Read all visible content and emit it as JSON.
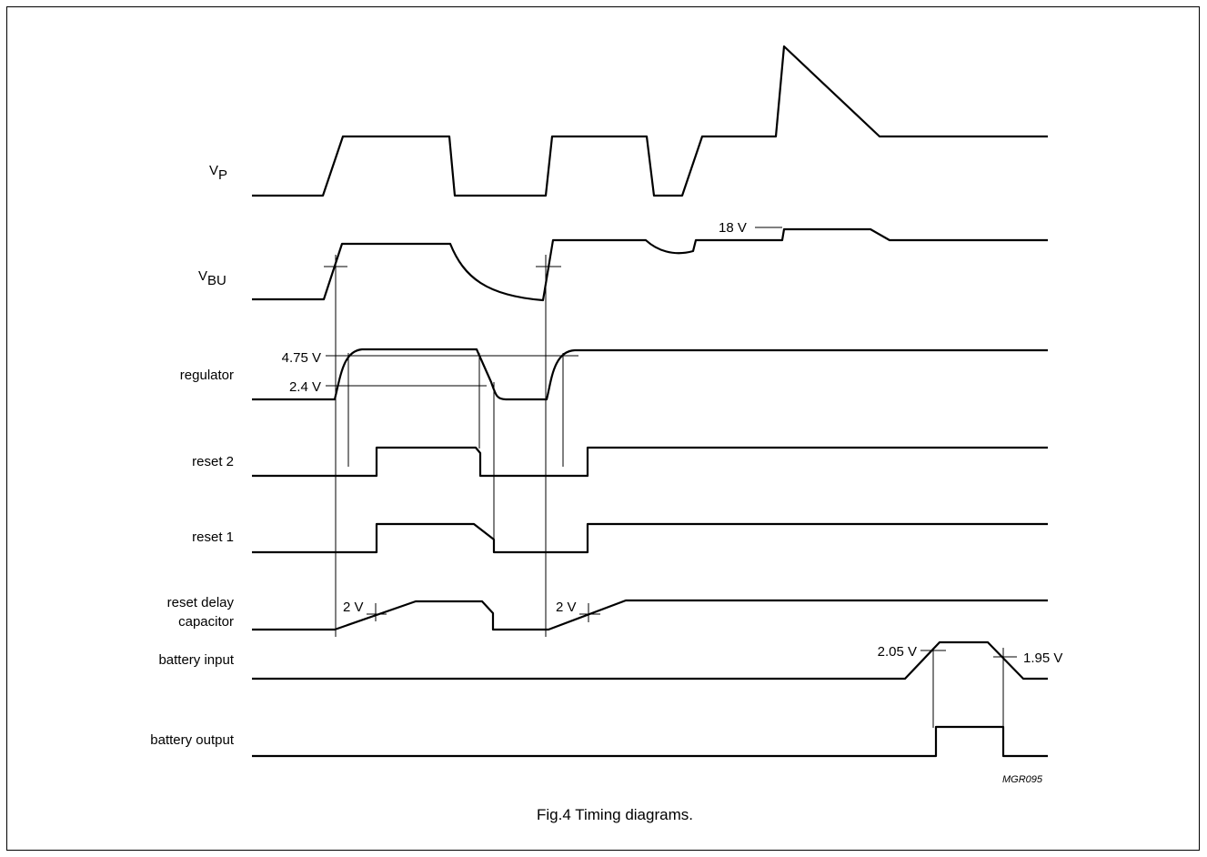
{
  "signals": {
    "vp": {
      "label": "V",
      "sub": "P"
    },
    "vbu": {
      "label": "V",
      "sub": "BU"
    },
    "regulator": "regulator",
    "reset2": "reset 2",
    "reset1": "reset 1",
    "reset_delay_line1": "reset delay",
    "reset_delay_line2": "capacitor",
    "battery_input": "battery input",
    "battery_output": "battery output"
  },
  "annotations": {
    "v18": "18 V",
    "v475": "4.75 V",
    "v24": "2.4 V",
    "v2_first": "2 V",
    "v2_second": "2 V",
    "v205": "2.05 V",
    "v195": "1.95 V"
  },
  "figure_code": "MGR095",
  "caption": "Fig.4  Timing diagrams."
}
